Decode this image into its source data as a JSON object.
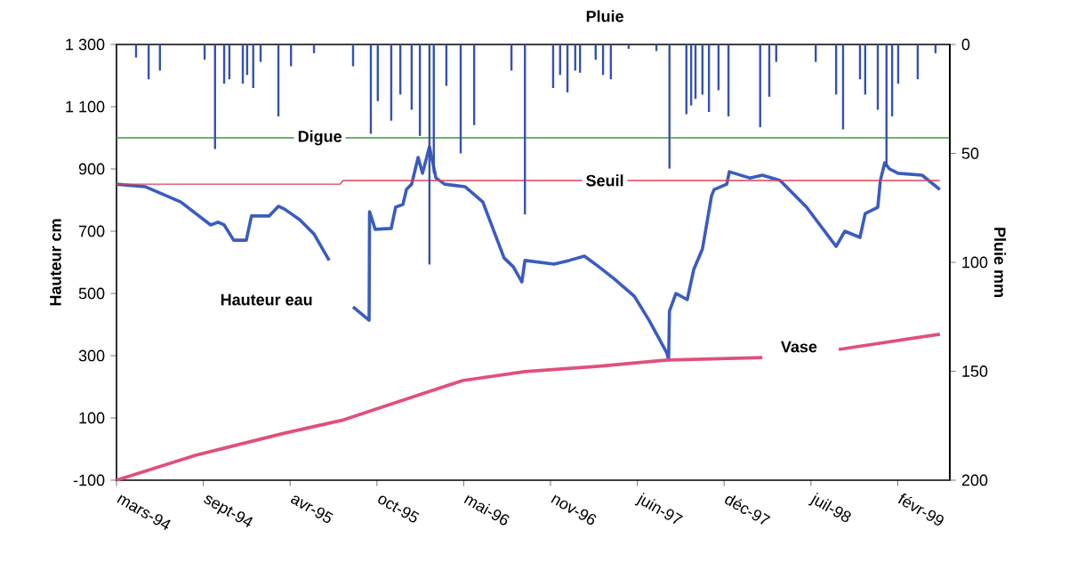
{
  "chart_data": {
    "type": "line",
    "ylabel": "Hauteur cm",
    "y2label": "Pluie mm",
    "xlim": [
      "1994-03-01",
      "1999-06-03"
    ],
    "xticks": [
      {
        "value": "1994-03-01",
        "label": "mars-94"
      },
      {
        "value": "1994-09-17",
        "label": "sept-94"
      },
      {
        "value": "1995-04-05",
        "label": "avr-95"
      },
      {
        "value": "1995-10-22",
        "label": "oct-95"
      },
      {
        "value": "1996-05-09",
        "label": "mai-96"
      },
      {
        "value": "1996-11-25",
        "label": "nov-96"
      },
      {
        "value": "1997-06-13",
        "label": "juin-97"
      },
      {
        "value": "1997-12-30",
        "label": "déc-97"
      },
      {
        "value": "1998-07-18",
        "label": "juil-98"
      },
      {
        "value": "1999-02-03",
        "label": "févr-99"
      }
    ],
    "ylim": [
      -100,
      1300
    ],
    "yticks": [
      {
        "value": 1300,
        "label": "1 300"
      },
      {
        "value": 1100,
        "label": "1 100"
      },
      900,
      700,
      500,
      300,
      100,
      -100
    ],
    "y2lim": [
      200,
      0
    ],
    "y2ticks": [
      0,
      50,
      100,
      150,
      200
    ],
    "grid": false,
    "ref_lines": [
      {
        "axis": "y",
        "value": 1000,
        "label": "Digue",
        "color": "#3c9a3c"
      }
    ],
    "series": [
      {
        "name": "Pluie",
        "type": "bar",
        "axis": "y2",
        "color": "#3552b0",
        "x": [
          "1994-04-15",
          "1994-05-14",
          "1994-06-09",
          "1994-09-20",
          "1994-10-14",
          "1994-11-04",
          "1994-11-16",
          "1994-12-17",
          "1994-12-27",
          "1995-01-10",
          "1995-01-27",
          "1995-03-09",
          "1995-04-07",
          "1995-05-30",
          "1995-08-28",
          "1995-10-08",
          "1995-10-24",
          "1995-11-24",
          "1995-12-15",
          "1996-01-10",
          "1996-01-29",
          "1996-02-20",
          "1996-03-01",
          "1996-03-30",
          "1996-05-02",
          "1996-06-02",
          "1996-08-27",
          "1996-09-27",
          "1996-12-01",
          "1996-12-17",
          "1997-01-03",
          "1997-01-21",
          "1997-02-01",
          "1997-03-09",
          "1997-03-26",
          "1997-04-13",
          "1997-05-24",
          "1997-07-27",
          "1997-08-26",
          "1997-10-04",
          "1997-10-15",
          "1997-10-25",
          "1997-11-10",
          "1997-11-25",
          "1997-12-17",
          "1998-01-09",
          "1998-03-23",
          "1998-04-13",
          "1998-04-29",
          "1998-07-29",
          "1998-09-14",
          "1998-09-30",
          "1998-11-08",
          "1998-11-20",
          "1998-12-19",
          "1999-01-08",
          "1999-01-21",
          "1999-02-04",
          "1999-03-21",
          "1999-05-01"
        ],
        "values": [
          6,
          16,
          12,
          7,
          48,
          18,
          16,
          18,
          14,
          20,
          8,
          33,
          10,
          4,
          10,
          41,
          26,
          35,
          23,
          30,
          42,
          101,
          59,
          19,
          50,
          37,
          12,
          78,
          20,
          14,
          22,
          12,
          13,
          7,
          14,
          16,
          2,
          3,
          57,
          32,
          28,
          25,
          23,
          31,
          21,
          33,
          38,
          24,
          8,
          8,
          23,
          39,
          16,
          23,
          30,
          56,
          33,
          18,
          16,
          4
        ]
      },
      {
        "name": "Hauteur eau",
        "color": "#3a5cc0",
        "x": [
          "1994-03-01",
          "1994-05-06",
          "1994-07-27",
          "1994-10-04",
          "1994-10-21",
          "1994-11-04",
          "1994-11-26",
          "1994-12-25",
          "1995-01-06",
          "1995-02-16",
          "1995-03-09",
          "1995-03-23",
          "1995-04-27",
          "1995-05-30",
          "1995-07-04",
          "1995-07-30",
          "1995-08-28",
          "1995-10-04",
          "1995-10-05",
          "1995-10-18",
          "1995-11-24",
          "1995-12-04",
          "1995-12-21",
          "1995-12-29",
          "1996-01-10",
          "1996-01-25",
          "1996-02-04",
          "1996-02-20",
          "1996-03-06",
          "1996-03-26",
          "1996-05-12",
          "1996-06-22",
          "1996-08-10",
          "1996-08-31",
          "1996-09-20",
          "1996-09-27",
          "1996-12-03",
          "1997-01-07",
          "1997-02-11",
          "1997-03-16",
          "1997-04-19",
          "1997-06-06",
          "1997-07-10",
          "1997-08-20",
          "1997-08-24",
          "1997-08-26",
          "1997-09-10",
          "1997-10-06",
          "1997-10-21",
          "1997-11-10",
          "1997-12-01",
          "1997-12-07",
          "1998-01-05",
          "1998-01-11",
          "1998-02-27",
          "1998-03-28",
          "1998-05-08",
          "1998-07-08",
          "1998-09-14",
          "1998-10-04",
          "1998-11-08",
          "1998-11-20",
          "1998-12-19",
          "1998-12-25",
          "1999-01-04",
          "1999-01-15",
          "1999-02-04",
          "1999-03-31",
          "1999-05-11"
        ],
        "values": [
          851,
          843,
          794,
          720,
          729,
          720,
          671,
          671,
          749,
          749,
          780,
          771,
          737,
          691,
          606,
          null,
          457,
          414,
          763,
          706,
          709,
          777,
          786,
          834,
          851,
          937,
          886,
          971,
          871,
          851,
          843,
          794,
          614,
          586,
          537,
          606,
          594,
          606,
          620,
          586,
          549,
          491,
          414,
          309,
          286,
          443,
          500,
          480,
          577,
          643,
          814,
          834,
          851,
          891,
          871,
          880,
          863,
          777,
          651,
          700,
          680,
          757,
          777,
          863,
          920,
          900,
          886,
          880,
          834
        ]
      },
      {
        "name": "Seuil",
        "color": "#e0405a",
        "x": [
          "1994-03-01",
          "1995-07-29",
          "1995-08-05",
          "1999-05-11"
        ],
        "values": [
          851,
          851,
          863,
          863
        ]
      },
      {
        "name": "Vase",
        "color": "#e0507a",
        "x": [
          "1994-03-01",
          "1994-08-30",
          "1995-03-23",
          "1995-08-07",
          "1995-12-21",
          "1996-05-06",
          "1996-09-27",
          "1997-03-16",
          "1997-08-20",
          "1998-03-28",
          "1998-05-15",
          "1998-09-20",
          "1999-05-11"
        ],
        "values": [
          -100,
          -20,
          51,
          94,
          157,
          220,
          249,
          266,
          286,
          294,
          null,
          320,
          369
        ]
      }
    ]
  }
}
